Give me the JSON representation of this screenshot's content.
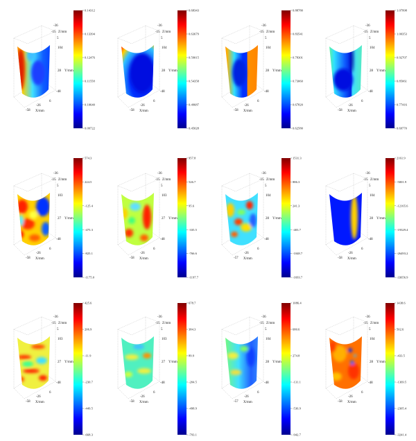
{
  "colormap": "jet",
  "chart_data": [
    {
      "type": "surface3d",
      "row": 1,
      "col": 1,
      "xlabel": "X/mm",
      "ylabel": "Y/mm",
      "zlabel": "Z/mm",
      "xticks": [
        "-58",
        "-26",
        "6"
      ],
      "yticks": [
        "104",
        "28",
        "-48"
      ],
      "zticks": [
        "-36",
        "-15",
        "5"
      ],
      "colorbar": {
        "min": 0.09722,
        "max": 0.14312,
        "ticks": [
          "0.14312",
          "0.13394",
          "0.12476",
          "0.11558",
          "0.10640",
          "0.09722"
        ]
      }
    },
    {
      "type": "surface3d",
      "row": 1,
      "col": 2,
      "xlabel": "X/mm",
      "ylabel": "Y/mm",
      "zlabel": "Z/mm",
      "xticks": [
        "-58",
        "-26",
        "6"
      ],
      "yticks": [
        "104",
        "28",
        "-48"
      ],
      "zticks": [
        "-36",
        "-15",
        "5"
      ],
      "colorbar": {
        "min": 0.45028,
        "max": 0.68343,
        "ticks": [
          "0.68343",
          "0.63679",
          "0.59015",
          "0.54358",
          "0.49687",
          "0.45028"
        ]
      }
    },
    {
      "type": "surface3d",
      "row": 1,
      "col": 3,
      "xlabel": "X/mm",
      "ylabel": "Y/mm",
      "zlabel": "Z/mm",
      "xticks": [
        "-58",
        "-26",
        "6"
      ],
      "yticks": [
        "104",
        "28",
        "-48"
      ],
      "zticks": [
        "-36",
        "-15",
        "5"
      ],
      "colorbar": {
        "min": 0.6258,
        "max": 0.8878,
        "ticks": [
          "0.88780",
          "0.83541",
          "0.78301",
          "0.73060",
          "0.67820",
          "0.62580"
        ]
      }
    },
    {
      "type": "surface3d",
      "row": 1,
      "col": 4,
      "xlabel": "X/mm",
      "ylabel": "Y/mm",
      "zlabel": "Z/mm",
      "xticks": [
        "-58",
        "-26",
        "6"
      ],
      "yticks": [
        "104",
        "28",
        "-48"
      ],
      "zticks": [
        "-36",
        "-15",
        "5"
      ],
      "colorbar": {
        "min": 0.6977,
        "max": 1.07998,
        "ticks": [
          "1.07998",
          "1.00353",
          "0.92707",
          "0.85061",
          "0.77416",
          "0.69770"
        ]
      }
    },
    {
      "type": "surface3d",
      "row": 2,
      "col": 1,
      "xlabel": "X/mm",
      "ylabel": "Y/mm",
      "zlabel": "Z/mm",
      "xticks": [
        "-58",
        "-26",
        "6"
      ],
      "yticks": [
        "103",
        "27",
        "-48"
      ],
      "zticks": [
        "-36",
        "-15",
        "5"
      ],
      "colorbar": {
        "min": -1175.0,
        "max": 574.3,
        "ticks": [
          "574.3",
          "224.5",
          "-125.4",
          "-475.3",
          "-825.1",
          "-1175.0"
        ]
      }
    },
    {
      "type": "surface3d",
      "row": 2,
      "col": 2,
      "xlabel": "X/mm",
      "ylabel": "Y/mm",
      "zlabel": "Z/mm",
      "xticks": [
        "-58",
        "-26",
        "6"
      ],
      "yticks": [
        "103",
        "27",
        "-48"
      ],
      "zticks": [
        "-36",
        "-15",
        "5"
      ],
      "colorbar": {
        "min": -1197.7,
        "max": 957.8,
        "ticks": [
          "957.8",
          "526.7",
          "95.6",
          "-335.5",
          "-766.6",
          "-1197.7"
        ]
      }
    },
    {
      "type": "surface3d",
      "row": 2,
      "col": 3,
      "xlabel": "X/mm",
      "ylabel": "Y/mm",
      "zlabel": "Z/mm",
      "xticks": [
        "-57",
        "-26",
        "6"
      ],
      "yticks": [
        "104",
        "28",
        "-48"
      ],
      "zticks": [
        "-36",
        "-15",
        "5"
      ],
      "colorbar": {
        "min": -1693.7,
        "max": 1531.3,
        "ticks": [
          "1531.3",
          "886.3",
          "241.3",
          "-403.7",
          "-1048.7",
          "-1693.7"
        ]
      }
    },
    {
      "type": "surface3d",
      "row": 2,
      "col": 4,
      "xlabel": "X/mm",
      "ylabel": "Y/mm",
      "zlabel": "Z/mm",
      "xticks": [
        "-58",
        "-26",
        "6"
      ],
      "yticks": [
        "104",
        "28",
        "-48"
      ],
      "zticks": [
        "-36",
        "-15",
        "5"
      ],
      "colorbar": {
        "min": -33656.9,
        "max": 2161.9,
        "ticks": [
          "2161.9",
          "-5001.9",
          "-12165.6",
          "-19329.4",
          "-26493.2",
          "-33656.9"
        ]
      }
    },
    {
      "type": "surface3d",
      "row": 3,
      "col": 1,
      "xlabel": "X/mm",
      "ylabel": "Y/mm",
      "zlabel": "Z/mm",
      "xticks": [
        "-58",
        "-26",
        "6"
      ],
      "yticks": [
        "103",
        "27",
        "-48"
      ],
      "zticks": [
        "-36",
        "-15",
        "5"
      ],
      "colorbar": {
        "min": -668.3,
        "max": 425.6,
        "ticks": [
          "425.6",
          "206.9",
          "-11.9",
          "-230.7",
          "-449.5",
          "-668.3"
        ]
      }
    },
    {
      "type": "surface3d",
      "row": 3,
      "col": 2,
      "xlabel": "X/mm",
      "ylabel": "Y/mm",
      "zlabel": "Z/mm",
      "xticks": [
        "-58",
        "-26",
        "6"
      ],
      "yticks": [
        "103",
        "27",
        "-48"
      ],
      "zticks": [
        "-36",
        "-15",
        "5"
      ],
      "colorbar": {
        "min": -793.1,
        "max": 678.7,
        "ticks": [
          "678.7",
          "384.3",
          "89.9",
          "-204.5",
          "-498.9",
          "-793.1"
        ]
      }
    },
    {
      "type": "surface3d",
      "row": 3,
      "col": 3,
      "xlabel": "X/mm",
      "ylabel": "Y/mm",
      "zlabel": "Z/mm",
      "xticks": [
        "-57",
        "-26",
        "6"
      ],
      "yticks": [
        "104",
        "28",
        "-48"
      ],
      "zticks": [
        "-36",
        "-15",
        "5"
      ],
      "colorbar": {
        "min": -942.7,
        "max": 1086.4,
        "ticks": [
          "1086.4",
          "680.6",
          "274.8",
          "-131.1",
          "-536.9",
          "-942.7"
        ]
      }
    },
    {
      "type": "surface3d",
      "row": 3,
      "col": 4,
      "xlabel": "X/mm",
      "ylabel": "Y/mm",
      "zlabel": "Z/mm",
      "xticks": [
        "-58",
        "-26",
        "6"
      ],
      "yticks": [
        "104",
        "28",
        "-48"
      ],
      "zticks": [
        "-36",
        "-15",
        "5"
      ],
      "colorbar": {
        "min": -3241.4,
        "max": 1438.6,
        "ticks": [
          "1438.6",
          "502.6",
          "-433.5",
          "-1369.5",
          "-2305.4",
          "-3241.4"
        ]
      }
    }
  ]
}
